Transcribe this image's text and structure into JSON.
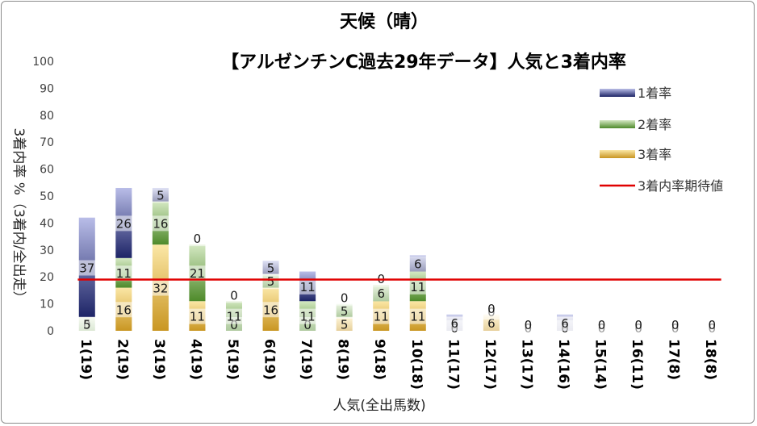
{
  "chart_data": {
    "type": "bar",
    "stacked": true,
    "title": "天候（晴）",
    "subtitle": "【アルゼンチンC過去29年データ】人気と3着内率",
    "xlabel": "人気(全出馬数)",
    "ylabel": "3着内率 %（3着内/全出走）",
    "ylim": [
      0,
      100
    ],
    "yticks": [
      0,
      10,
      20,
      30,
      40,
      50,
      60,
      70,
      80,
      90,
      100
    ],
    "grid": false,
    "legend_position": "right",
    "categories": [
      "1(19)",
      "2(19)",
      "3(19)",
      "4(19)",
      "5(19)",
      "6(19)",
      "7(19)",
      "8(19)",
      "9(18)",
      "10(18)",
      "11(17)",
      "12(17)",
      "13(17)",
      "14(16)",
      "15(14)",
      "16(11)",
      "17(8)",
      "18(8)"
    ],
    "series": [
      {
        "name": "3着率",
        "color": "#d6a93a",
        "values": [
          0,
          16,
          32,
          11,
          0,
          16,
          0,
          5,
          11,
          11,
          0,
          6,
          0,
          0,
          0,
          0,
          0,
          0
        ]
      },
      {
        "name": "2着率",
        "color": "#5f9a3a",
        "values": [
          5,
          11,
          16,
          21,
          11,
          5,
          11,
          5,
          6,
          11,
          0,
          0,
          0,
          0,
          0,
          0,
          0,
          0
        ]
      },
      {
        "name": "1着率",
        "color": "#2e3480",
        "values": [
          37,
          26,
          5,
          0,
          0,
          5,
          11,
          0,
          0,
          6,
          6,
          0,
          0,
          6,
          0,
          0,
          0,
          0
        ]
      }
    ],
    "labels_per_category": [
      [
        {
          "text": "0",
          "value": 0
        },
        {
          "text": "5",
          "value": 5
        },
        {
          "text": "37",
          "value": 37
        }
      ],
      [
        {
          "text": "16",
          "value": 16
        },
        {
          "text": "11",
          "value": 11
        },
        {
          "text": "26",
          "value": 26
        }
      ],
      [
        {
          "text": "32",
          "value": 32
        },
        {
          "text": "16",
          "value": 16
        },
        {
          "text": "5",
          "value": 5
        }
      ],
      [
        {
          "text": "11",
          "value": 11
        },
        {
          "text": "21",
          "value": 21
        },
        {
          "text": "0",
          "value": 0
        }
      ],
      [
        {
          "text": "0",
          "value": 0
        },
        {
          "text": "11",
          "value": 11
        },
        {
          "text": "0",
          "value": 0
        }
      ],
      [
        {
          "text": "16",
          "value": 16
        },
        {
          "text": "5",
          "value": 5
        },
        {
          "text": "5",
          "value": 5
        }
      ],
      [
        {
          "text": "0",
          "value": 0
        },
        {
          "text": "11",
          "value": 11
        },
        {
          "text": "11",
          "value": 11
        }
      ],
      [
        {
          "text": "5",
          "value": 5
        },
        {
          "text": "5",
          "value": 5
        },
        {
          "text": "0",
          "value": 0
        }
      ],
      [
        {
          "text": "11",
          "value": 11
        },
        {
          "text": "6",
          "value": 6
        },
        {
          "text": "0",
          "value": 0
        }
      ],
      [
        {
          "text": "11",
          "value": 11
        },
        {
          "text": "11",
          "value": 11
        },
        {
          "text": "6",
          "value": 6
        }
      ],
      [
        {
          "text": "0",
          "value": 0
        },
        {
          "text": "0",
          "value": 0
        },
        {
          "text": "6",
          "value": 6
        }
      ],
      [
        {
          "text": "6",
          "value": 6
        },
        {
          "text": "0",
          "value": 0
        },
        {
          "text": "0",
          "value": 0
        }
      ],
      [
        {
          "text": "0",
          "value": 0
        },
        {
          "text": "0",
          "value": 0
        },
        {
          "text": "0",
          "value": 0
        }
      ],
      [
        {
          "text": "0",
          "value": 0
        },
        {
          "text": "0",
          "value": 0
        },
        {
          "text": "6",
          "value": 6
        }
      ],
      [
        {
          "text": "0",
          "value": 0
        },
        {
          "text": "0",
          "value": 0
        },
        {
          "text": "0",
          "value": 0
        }
      ],
      [
        {
          "text": "0",
          "value": 0
        },
        {
          "text": "0",
          "value": 0
        },
        {
          "text": "0",
          "value": 0
        }
      ],
      [
        {
          "text": "0",
          "value": 0
        },
        {
          "text": "0",
          "value": 0
        },
        {
          "text": "0",
          "value": 0
        }
      ],
      [
        {
          "text": "0",
          "value": 0
        },
        {
          "text": "0",
          "value": 0
        },
        {
          "text": "0",
          "value": 0
        }
      ]
    ],
    "reference_line": {
      "name": "3着内率期待値",
      "value": 19,
      "color": "#e00000"
    },
    "legend": [
      {
        "name": "1着率",
        "color": "#2e3480"
      },
      {
        "name": "2着率",
        "color": "#5f9a3a"
      },
      {
        "name": "3着率",
        "color": "#d6a93a"
      },
      {
        "name": "3着内率期待値",
        "color": "#e00000"
      }
    ]
  }
}
